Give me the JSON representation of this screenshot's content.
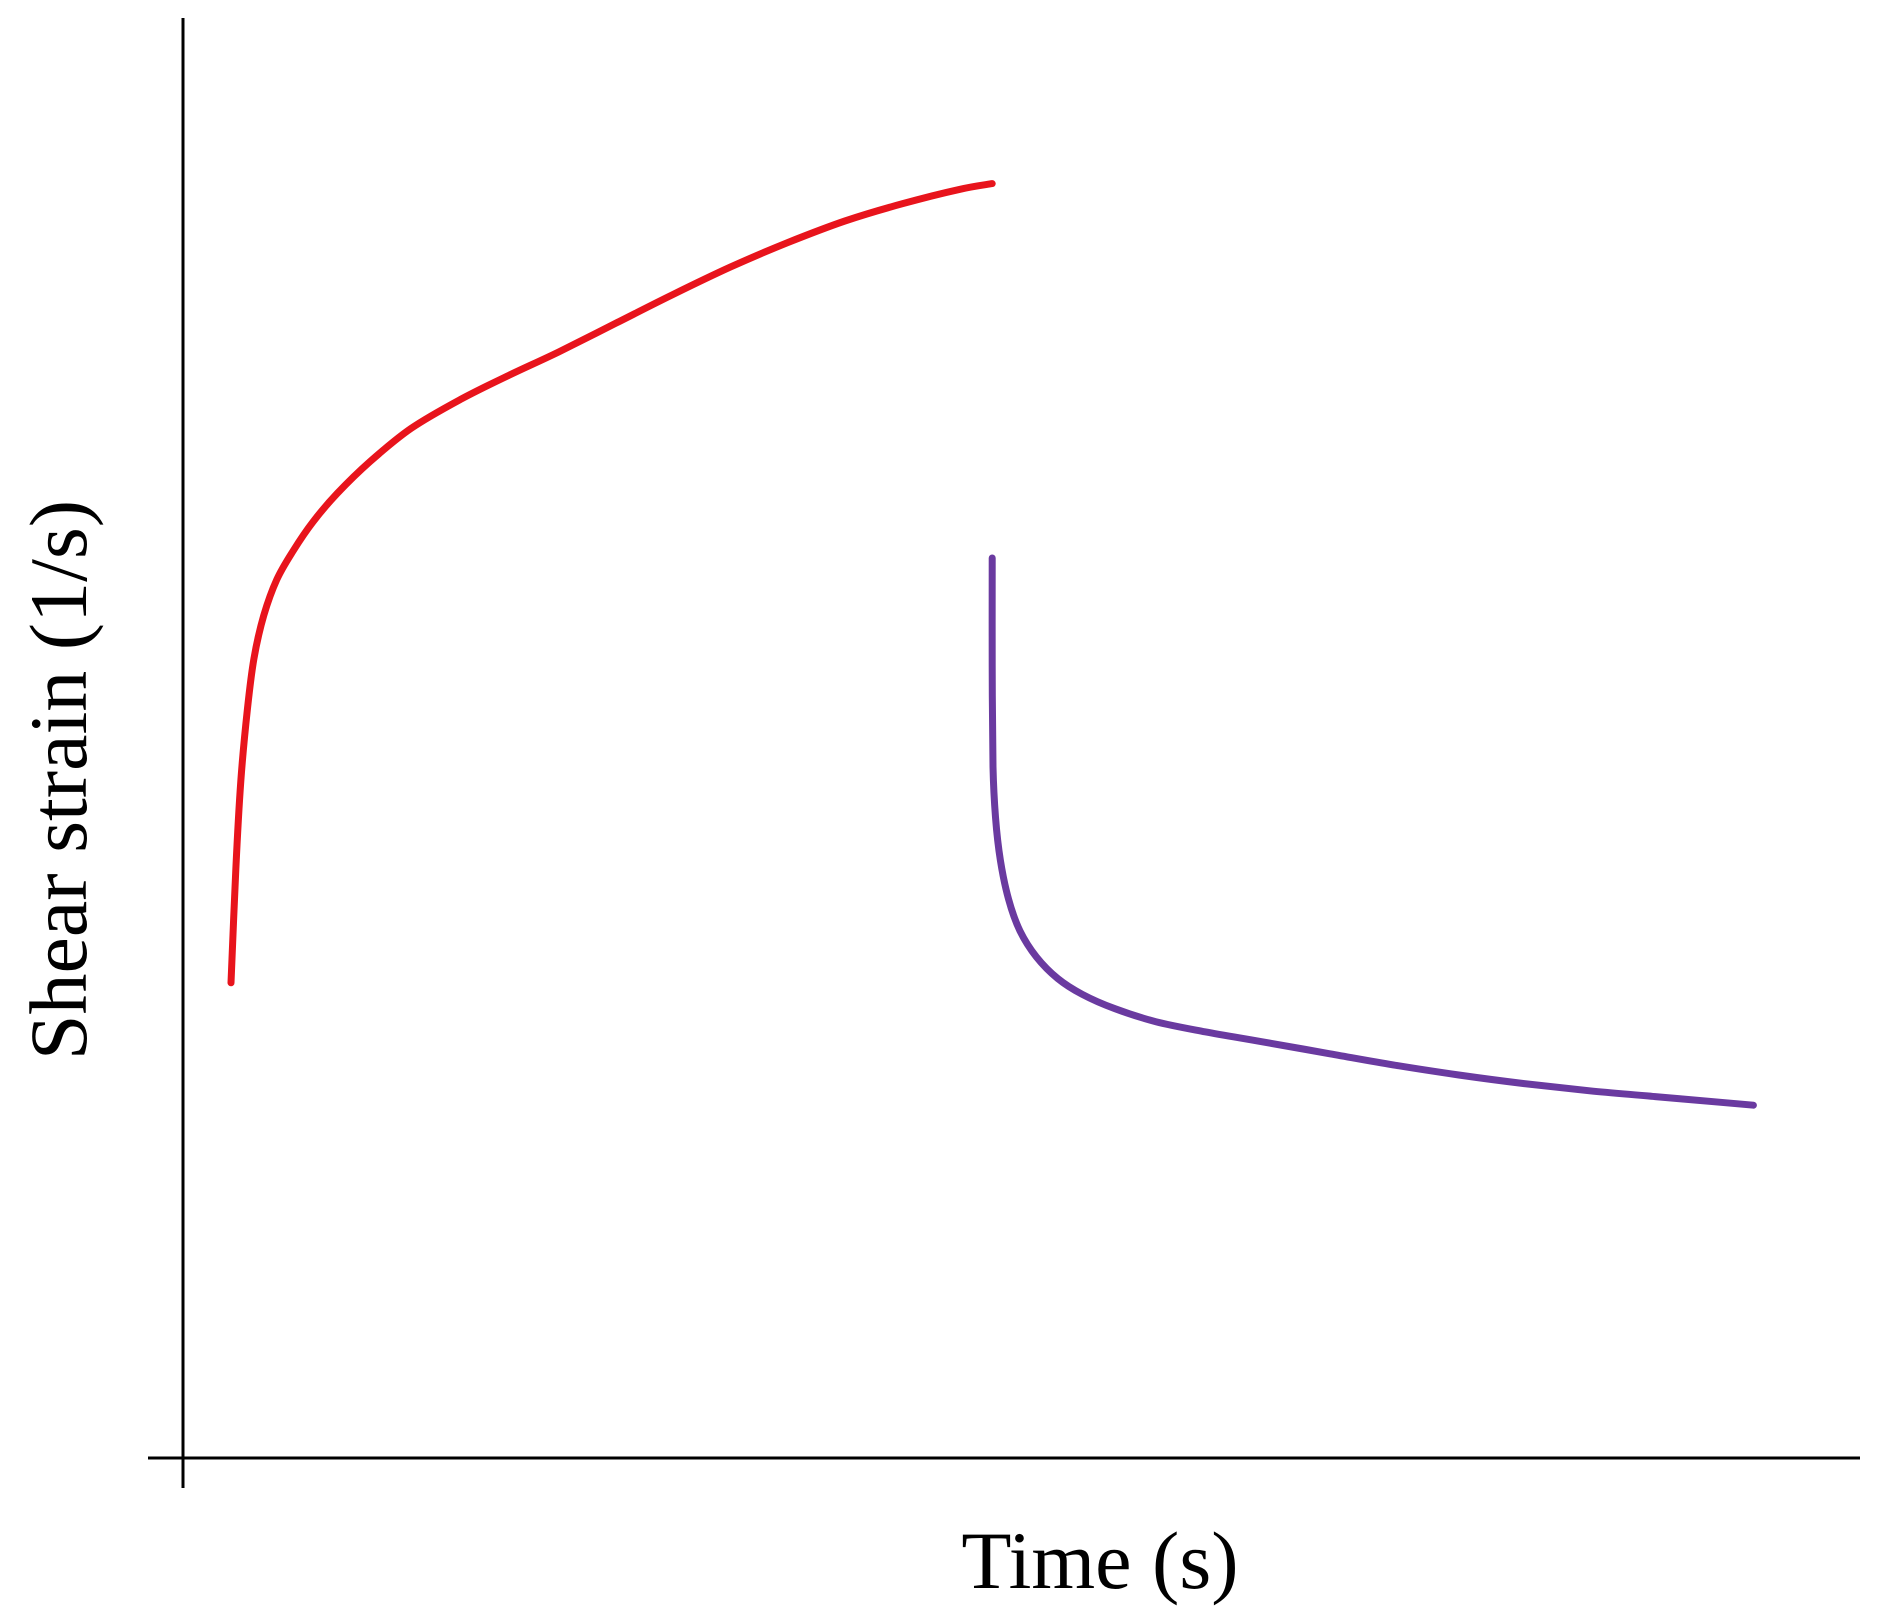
{
  "chart_data": {
    "type": "line",
    "title": "",
    "xlabel": "Time (s)",
    "ylabel": "Shear strain (1/s)",
    "xlim": [
      0,
      100
    ],
    "ylim": [
      0,
      100
    ],
    "x_ticks_shown": false,
    "y_ticks_shown": false,
    "grid": false,
    "legend": "none",
    "series": [
      {
        "color": "#e8141c",
        "x": [
          0.0,
          0.3,
          0.6,
          1.0,
          1.4,
          2.0,
          2.8,
          3.8,
          5.0,
          6.5,
          8.5,
          11.0,
          14.0,
          17.0,
          20.0,
          23.5,
          27.0,
          30.5,
          34.0,
          37.5,
          41.0,
          44.5,
          46.5
        ],
        "y": [
          33.0,
          41.0,
          47.0,
          52.0,
          55.5,
          58.5,
          61.0,
          63.0,
          65.0,
          67.0,
          69.2,
          71.5,
          73.5,
          75.2,
          76.8,
          78.8,
          80.8,
          82.7,
          84.4,
          85.9,
          87.1,
          88.1,
          88.5
        ]
      },
      {
        "color": "#6a3aa0",
        "x": [
          46.5,
          46.5,
          46.55,
          46.7,
          47.0,
          47.5,
          48.2,
          49.2,
          50.5,
          52.0,
          54.0,
          56.5,
          59.5,
          63.0,
          67.0,
          71.0,
          75.0,
          79.0,
          83.0,
          87.0,
          91.0,
          93.0
        ],
        "y": [
          62.5,
          55.0,
          48.0,
          44.5,
          41.5,
          38.8,
          36.6,
          34.8,
          33.3,
          32.2,
          31.2,
          30.3,
          29.6,
          28.9,
          28.1,
          27.3,
          26.6,
          26.0,
          25.5,
          25.1,
          24.7,
          24.5
        ]
      }
    ]
  }
}
